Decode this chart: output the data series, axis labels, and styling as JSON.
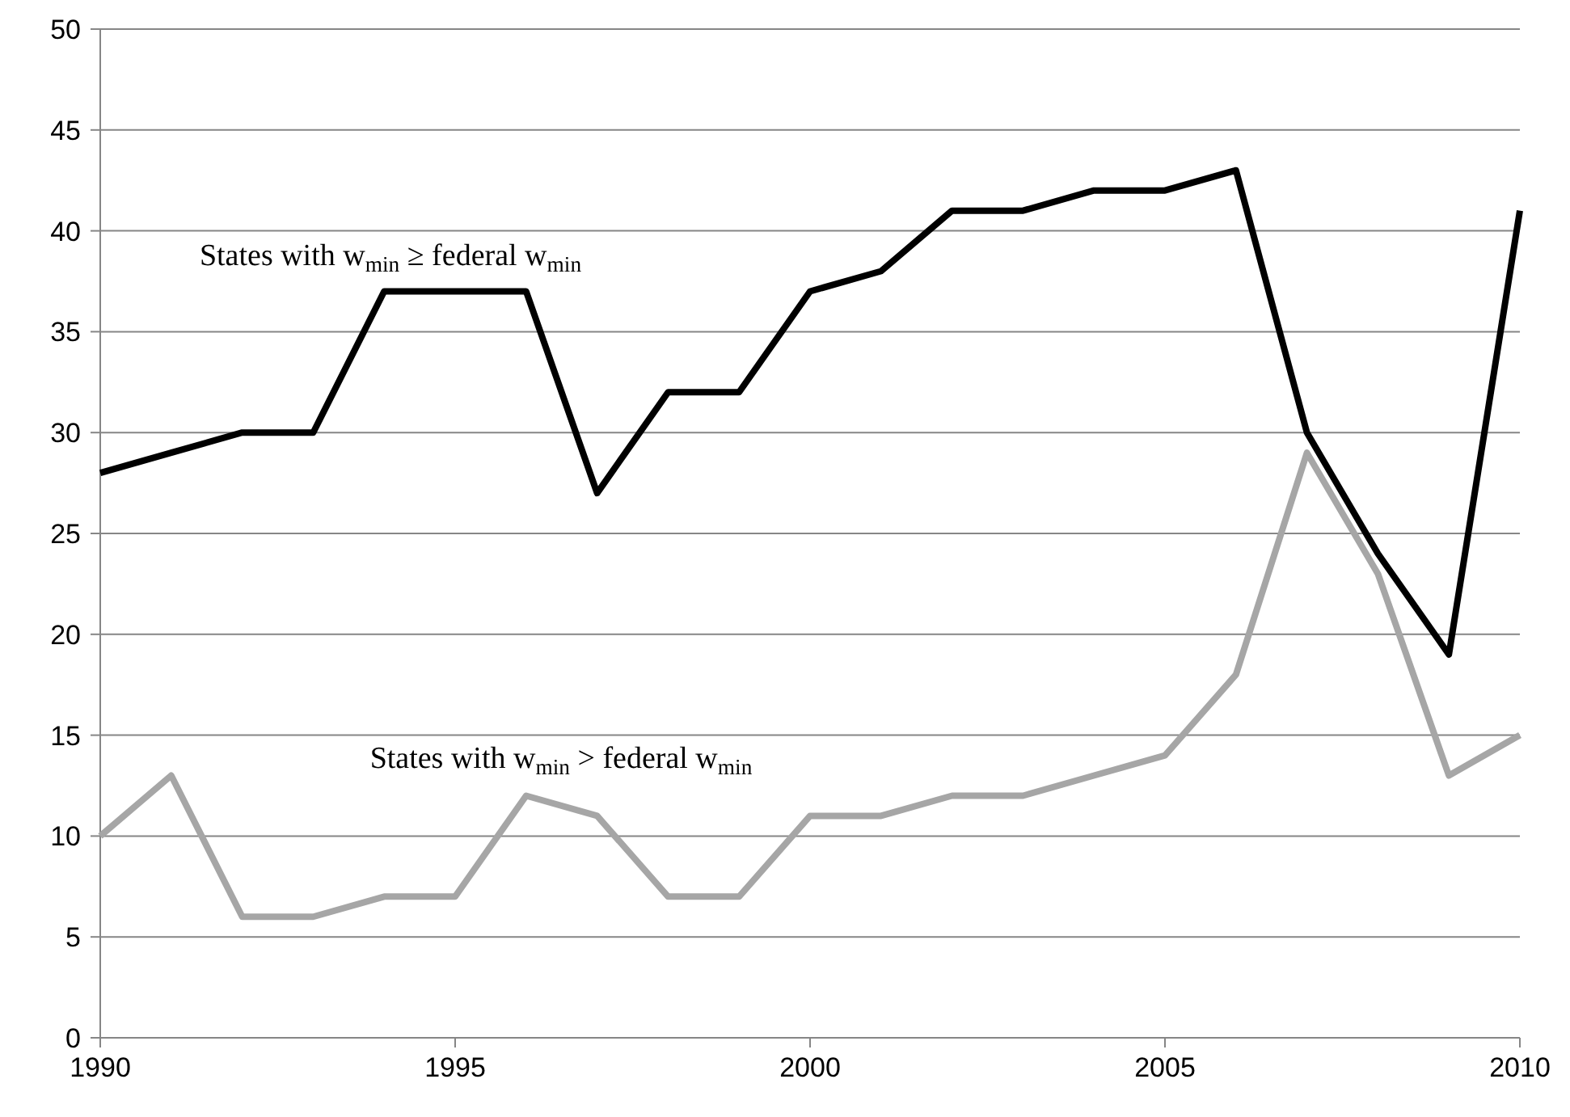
{
  "chart_data": {
    "type": "line",
    "x": [
      1990,
      1991,
      1992,
      1993,
      1994,
      1995,
      1996,
      1997,
      1998,
      1999,
      2000,
      2001,
      2002,
      2003,
      2004,
      2005,
      2006,
      2007,
      2008,
      2009,
      2010
    ],
    "series": [
      {
        "name": "States with w$_{min}$ ≥ federal w$_{min}$",
        "color": "#000000",
        "values": [
          28,
          29,
          30,
          30,
          37,
          37,
          37,
          27,
          32,
          32,
          37,
          38,
          41,
          41,
          42,
          42,
          43,
          30,
          24,
          19,
          41
        ]
      },
      {
        "name": "States with w$_{min}$ > federal w$_{min}$",
        "color": "#a6a6a6",
        "values": [
          10,
          13,
          6,
          6,
          7,
          7,
          12,
          11,
          7,
          7,
          11,
          11,
          12,
          12,
          13,
          14,
          18,
          29,
          23,
          13,
          15
        ]
      }
    ],
    "xlim": [
      1990,
      2010
    ],
    "xticks": [
      1990,
      1995,
      2000,
      2005,
      2010
    ],
    "ylim": [
      0,
      50
    ],
    "yticks": [
      0,
      5,
      10,
      15,
      20,
      25,
      30,
      35,
      40,
      45,
      50
    ],
    "grid": "y",
    "marker": "none",
    "line_style": "solid"
  }
}
